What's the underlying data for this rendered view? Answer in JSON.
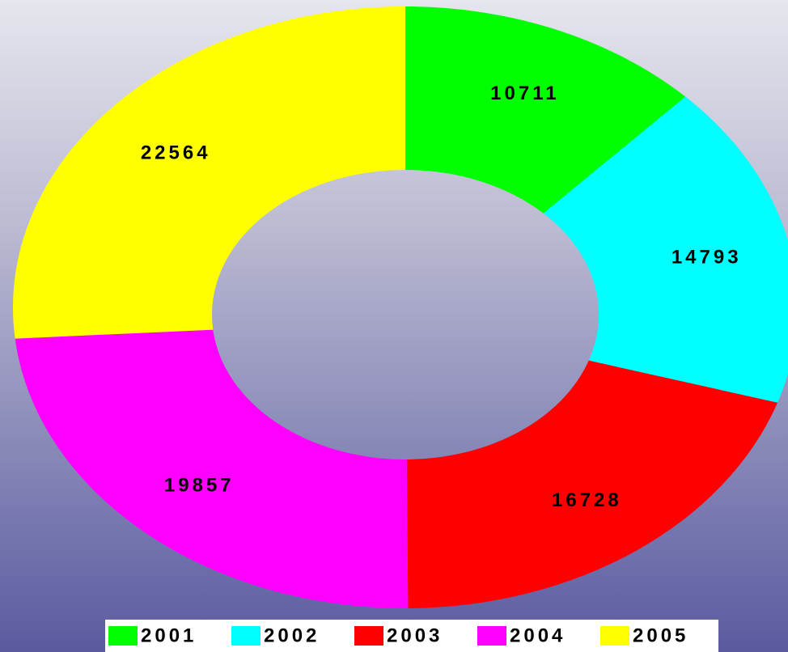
{
  "chart_data": {
    "type": "donut",
    "categories": [
      "2001",
      "2002",
      "2003",
      "2004",
      "2005"
    ],
    "values": [
      10711,
      14793,
      16728,
      19857,
      22564
    ],
    "colors": [
      "#00ff00",
      "#00ffff",
      "#ff0000",
      "#ff00ff",
      "#ffff00"
    ],
    "legend": "bottom"
  }
}
